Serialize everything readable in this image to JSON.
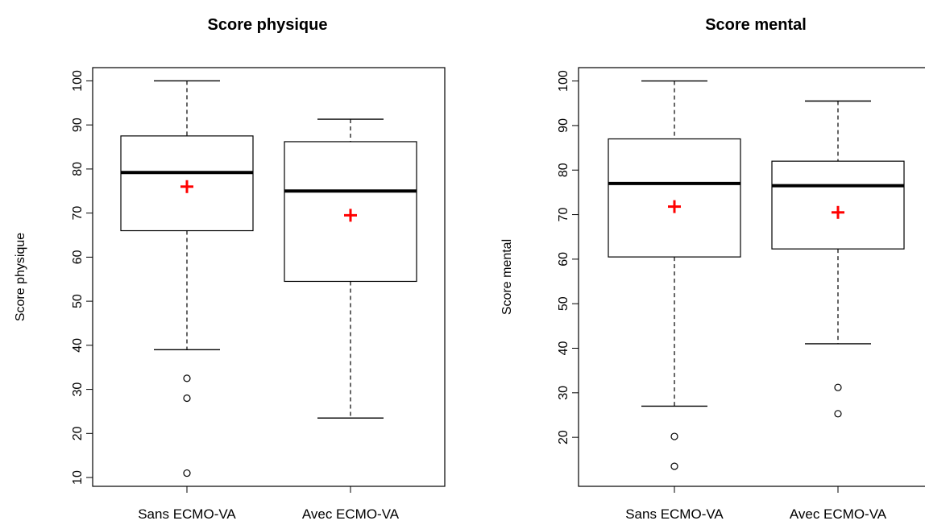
{
  "chart_data": [
    {
      "type": "boxplot",
      "title": "Score physique",
      "ylabel": "Score physique",
      "ylim": [
        8,
        103
      ],
      "yticks": [
        "10",
        "20",
        "30",
        "40",
        "50",
        "60",
        "70",
        "80",
        "90",
        "100"
      ],
      "categories": [
        "Sans ECMO-VA",
        "Avec ECMO-VA"
      ],
      "boxes": [
        {
          "whisker_low": 39,
          "q1": 66,
          "median": 79.2,
          "q3": 87.5,
          "whisker_high": 100,
          "mean": 76,
          "outliers": [
            32.5,
            28,
            11
          ]
        },
        {
          "whisker_low": 23.5,
          "q1": 54.5,
          "median": 75,
          "q3": 86.2,
          "whisker_high": 91.3,
          "mean": 69.5,
          "outliers": []
        }
      ],
      "colors": {
        "box": "#000000",
        "mean_marker": "#ff0000"
      }
    },
    {
      "type": "boxplot",
      "title": "Score mental",
      "ylabel": "Score mental",
      "ylim": [
        9,
        103
      ],
      "yticks": [
        "20",
        "30",
        "40",
        "50",
        "60",
        "70",
        "80",
        "90",
        "100"
      ],
      "categories": [
        "Sans ECMO-VA",
        "Avec ECMO-VA"
      ],
      "boxes": [
        {
          "whisker_low": 27,
          "q1": 60.5,
          "median": 77,
          "q3": 87,
          "whisker_high": 100,
          "mean": 71.8,
          "outliers": [
            20.2,
            13.5
          ]
        },
        {
          "whisker_low": 41,
          "q1": 62.3,
          "median": 76.5,
          "q3": 82,
          "whisker_high": 95.5,
          "mean": 70.5,
          "outliers": [
            31.2,
            25.3
          ]
        }
      ],
      "colors": {
        "box": "#000000",
        "mean_marker": "#ff0000"
      }
    }
  ]
}
